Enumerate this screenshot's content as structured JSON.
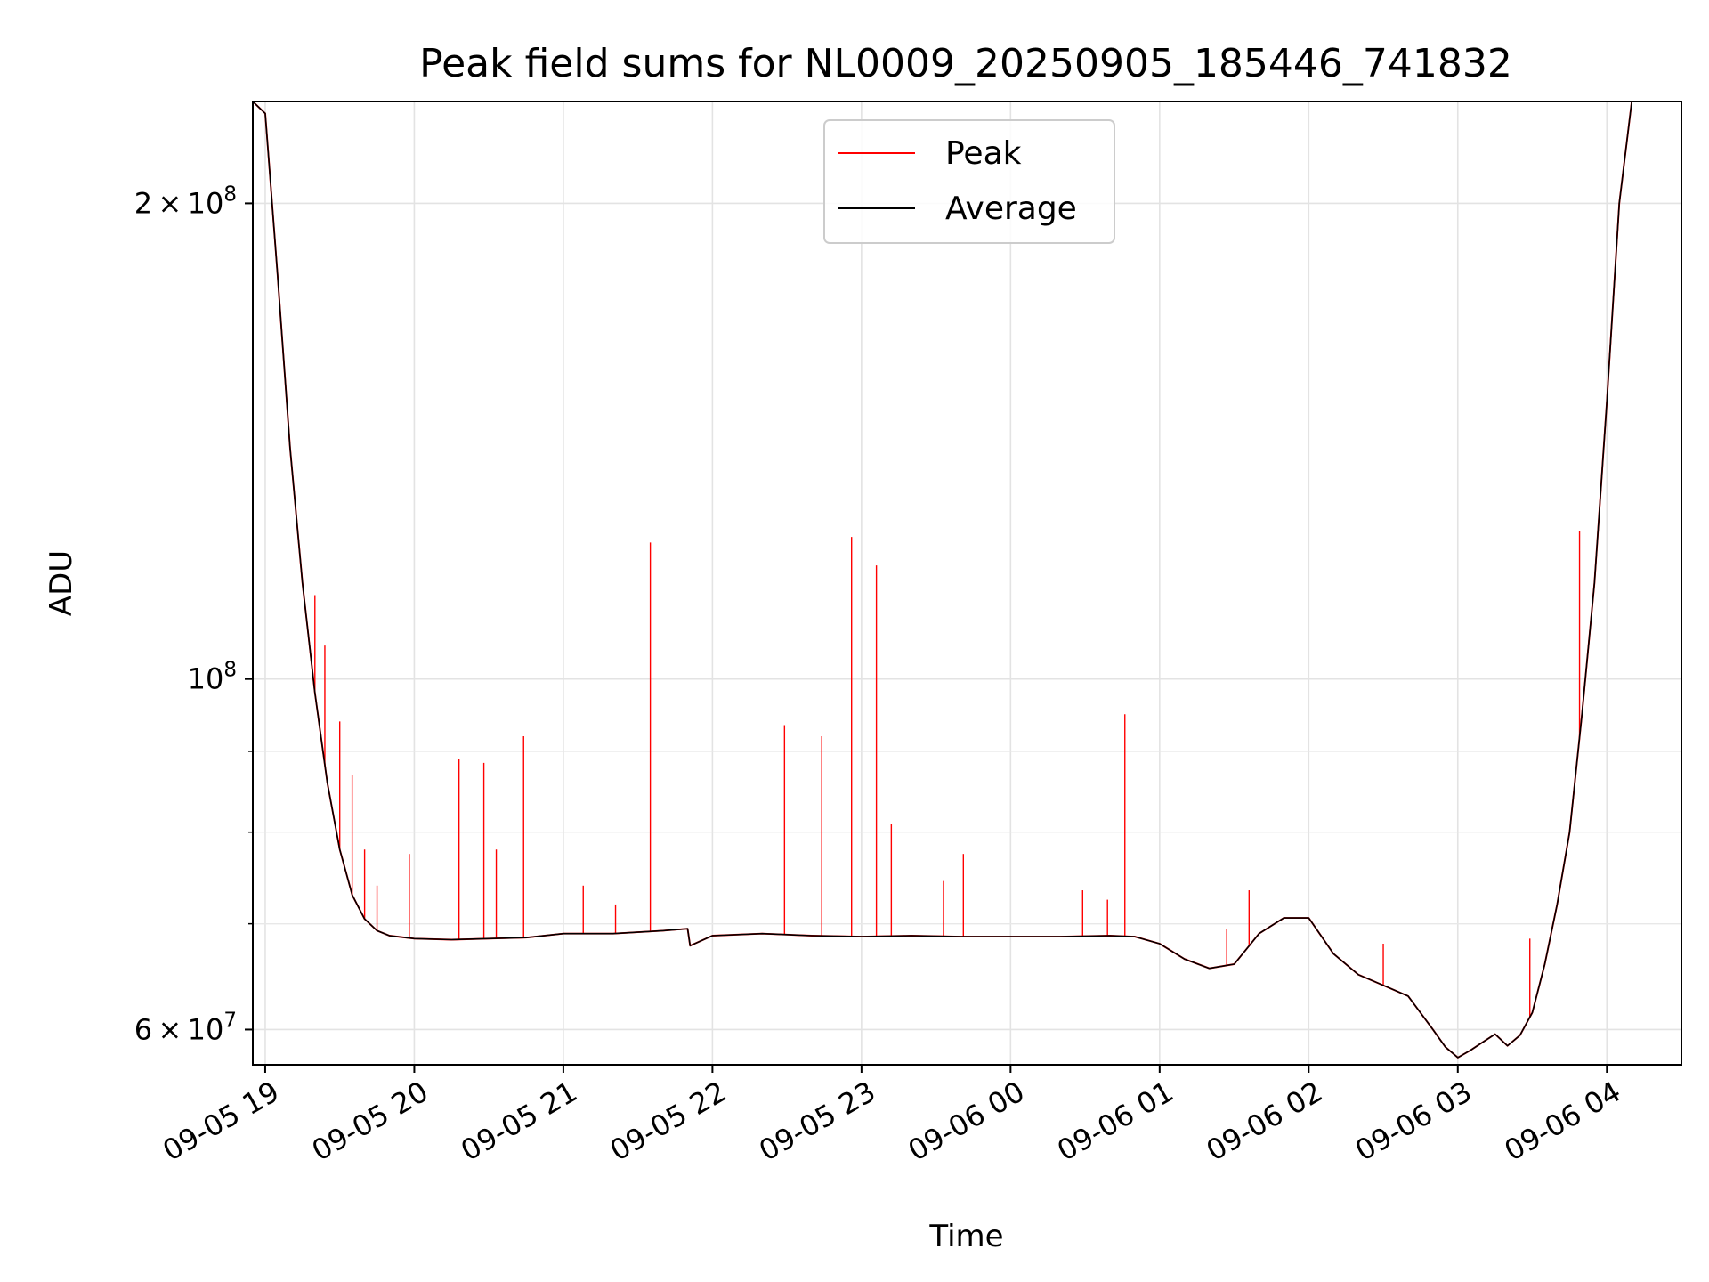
{
  "chart_data": {
    "type": "line",
    "title": "Peak field sums for NL0009_20250905_185446_741832",
    "xlabel": "Time",
    "ylabel": "ADU",
    "y_scale": "log",
    "ylim": [
      57000000,
      232000000
    ],
    "xlim": [
      "2025-09-05 18:55",
      "2025-09-06 04:30"
    ],
    "grid": true,
    "legend_position": "upper center",
    "x_ticks": [
      {
        "value": "2025-09-05 19:00",
        "label": "09-05 19"
      },
      {
        "value": "2025-09-05 20:00",
        "label": "09-05 20"
      },
      {
        "value": "2025-09-05 21:00",
        "label": "09-05 21"
      },
      {
        "value": "2025-09-05 22:00",
        "label": "09-05 22"
      },
      {
        "value": "2025-09-05 23:00",
        "label": "09-05 23"
      },
      {
        "value": "2025-09-06 00:00",
        "label": "09-06 00"
      },
      {
        "value": "2025-09-06 01:00",
        "label": "09-06 01"
      },
      {
        "value": "2025-09-06 02:00",
        "label": "09-06 02"
      },
      {
        "value": "2025-09-06 03:00",
        "label": "09-06 03"
      },
      {
        "value": "2025-09-06 04:00",
        "label": "09-06 04"
      }
    ],
    "y_ticks_major": [
      {
        "value": 60000000,
        "coef": "6",
        "exp": "7"
      },
      {
        "value": 100000000,
        "coef": "",
        "exp": "8"
      },
      {
        "value": 200000000,
        "coef": "2",
        "exp": "8"
      }
    ],
    "y_ticks_minor": [
      70000000,
      80000000,
      90000000
    ],
    "series": [
      {
        "name": "Peak",
        "color": "#ff0000",
        "line_width": 1.2,
        "x": [
          "2025-09-05 18:55",
          "2025-09-05 19:00",
          "2025-09-05 19:05",
          "2025-09-05 19:10",
          "2025-09-05 19:15",
          "2025-09-05 19:20",
          "2025-09-05 19:25",
          "2025-09-05 19:30",
          "2025-09-05 19:35",
          "2025-09-05 19:40",
          "2025-09-05 19:45",
          "2025-09-05 19:50",
          "2025-09-05 20:00",
          "2025-09-05 20:15",
          "2025-09-05 20:30",
          "2025-09-05 20:45",
          "2025-09-05 21:00",
          "2025-09-05 21:20",
          "2025-09-05 21:40",
          "2025-09-05 21:50",
          "2025-09-05 21:51",
          "2025-09-05 22:00",
          "2025-09-05 22:20",
          "2025-09-05 22:40",
          "2025-09-05 23:00",
          "2025-09-05 23:20",
          "2025-09-05 23:40",
          "2025-09-06 00:00",
          "2025-09-06 00:20",
          "2025-09-06 00:40",
          "2025-09-06 00:50",
          "2025-09-06 01:00",
          "2025-09-06 01:10",
          "2025-09-06 01:20",
          "2025-09-06 01:30",
          "2025-09-06 01:40",
          "2025-09-06 01:50",
          "2025-09-06 02:00",
          "2025-09-06 02:10",
          "2025-09-06 02:20",
          "2025-09-06 02:30",
          "2025-09-06 02:40",
          "2025-09-06 02:50",
          "2025-09-06 02:55",
          "2025-09-06 03:00",
          "2025-09-06 03:05",
          "2025-09-06 03:10",
          "2025-09-06 03:15",
          "2025-09-06 03:20",
          "2025-09-06 03:25",
          "2025-09-06 03:30",
          "2025-09-06 03:35",
          "2025-09-06 03:40",
          "2025-09-06 03:45",
          "2025-09-06 03:50",
          "2025-09-06 03:55",
          "2025-09-06 04:00",
          "2025-09-06 04:05",
          "2025-09-06 04:10",
          "2025-09-06 04:15"
        ],
        "values": [
          232000000,
          228000000,
          180000000,
          140000000,
          115000000,
          98000000,
          86000000,
          78000000,
          73000000,
          70500000,
          69300000,
          68800000,
          68500000,
          68400000,
          68500000,
          68600000,
          69000000,
          69000000,
          69300000,
          69500000,
          67800000,
          68800000,
          69000000,
          68800000,
          68700000,
          68800000,
          68700000,
          68700000,
          68700000,
          68800000,
          68700000,
          68000000,
          66500000,
          65600000,
          66000000,
          69000000,
          70600000,
          70600000,
          67000000,
          65000000,
          64000000,
          63000000,
          60000000,
          58500000,
          57600000,
          58200000,
          58900000,
          59600000,
          58600000,
          59500000,
          61500000,
          66000000,
          72000000,
          80000000,
          95000000,
          115000000,
          150000000,
          200000000,
          232000000,
          232000000
        ]
      },
      {
        "name": "Average",
        "color": "#000000",
        "line_width": 1.0,
        "x": [
          "2025-09-05 18:55",
          "2025-09-05 19:00",
          "2025-09-05 19:05",
          "2025-09-05 19:10",
          "2025-09-05 19:15",
          "2025-09-05 19:20",
          "2025-09-05 19:25",
          "2025-09-05 19:30",
          "2025-09-05 19:35",
          "2025-09-05 19:40",
          "2025-09-05 19:45",
          "2025-09-05 19:50",
          "2025-09-05 20:00",
          "2025-09-05 20:15",
          "2025-09-05 20:30",
          "2025-09-05 20:45",
          "2025-09-05 21:00",
          "2025-09-05 21:20",
          "2025-09-05 21:40",
          "2025-09-05 21:50",
          "2025-09-05 21:51",
          "2025-09-05 22:00",
          "2025-09-05 22:20",
          "2025-09-05 22:40",
          "2025-09-05 23:00",
          "2025-09-05 23:20",
          "2025-09-05 23:40",
          "2025-09-06 00:00",
          "2025-09-06 00:20",
          "2025-09-06 00:40",
          "2025-09-06 00:50",
          "2025-09-06 01:00",
          "2025-09-06 01:10",
          "2025-09-06 01:20",
          "2025-09-06 01:30",
          "2025-09-06 01:40",
          "2025-09-06 01:50",
          "2025-09-06 02:00",
          "2025-09-06 02:10",
          "2025-09-06 02:20",
          "2025-09-06 02:30",
          "2025-09-06 02:40",
          "2025-09-06 02:50",
          "2025-09-06 02:55",
          "2025-09-06 03:00",
          "2025-09-06 03:05",
          "2025-09-06 03:10",
          "2025-09-06 03:15",
          "2025-09-06 03:20",
          "2025-09-06 03:25",
          "2025-09-06 03:30",
          "2025-09-06 03:35",
          "2025-09-06 03:40",
          "2025-09-06 03:45",
          "2025-09-06 03:50",
          "2025-09-06 03:55",
          "2025-09-06 04:00",
          "2025-09-06 04:05",
          "2025-09-06 04:10",
          "2025-09-06 04:15"
        ],
        "values": [
          232000000,
          228000000,
          180000000,
          140000000,
          115000000,
          98000000,
          86000000,
          78000000,
          73000000,
          70500000,
          69300000,
          68800000,
          68500000,
          68400000,
          68500000,
          68600000,
          69000000,
          69000000,
          69300000,
          69500000,
          67800000,
          68800000,
          69000000,
          68800000,
          68700000,
          68800000,
          68700000,
          68700000,
          68700000,
          68800000,
          68700000,
          68000000,
          66500000,
          65600000,
          66000000,
          69000000,
          70600000,
          70600000,
          67000000,
          65000000,
          64000000,
          63000000,
          60000000,
          58500000,
          57600000,
          58200000,
          58900000,
          59600000,
          58600000,
          59500000,
          61500000,
          66000000,
          72000000,
          80000000,
          95000000,
          115000000,
          150000000,
          200000000,
          232000000,
          232000000
        ]
      }
    ],
    "peak_spikes": [
      {
        "x": "2025-09-05 19:20",
        "value": 113000000
      },
      {
        "x": "2025-09-05 19:24",
        "value": 105000000
      },
      {
        "x": "2025-09-05 19:30",
        "value": 94000000
      },
      {
        "x": "2025-09-05 19:35",
        "value": 87000000
      },
      {
        "x": "2025-09-05 19:40",
        "value": 78000000
      },
      {
        "x": "2025-09-05 19:45",
        "value": 74000000
      },
      {
        "x": "2025-09-05 19:58",
        "value": 77500000
      },
      {
        "x": "2025-09-05 20:18",
        "value": 89000000
      },
      {
        "x": "2025-09-05 20:28",
        "value": 88500000
      },
      {
        "x": "2025-09-05 20:33",
        "value": 78000000
      },
      {
        "x": "2025-09-05 20:44",
        "value": 92000000
      },
      {
        "x": "2025-09-05 21:08",
        "value": 74000000
      },
      {
        "x": "2025-09-05 21:21",
        "value": 72000000
      },
      {
        "x": "2025-09-05 21:35",
        "value": 122000000
      },
      {
        "x": "2025-09-05 22:29",
        "value": 93500000
      },
      {
        "x": "2025-09-05 22:44",
        "value": 92000000
      },
      {
        "x": "2025-09-05 22:56",
        "value": 123000000
      },
      {
        "x": "2025-09-05 23:06",
        "value": 118000000
      },
      {
        "x": "2025-09-05 23:12",
        "value": 81000000
      },
      {
        "x": "2025-09-05 23:33",
        "value": 74500000
      },
      {
        "x": "2025-09-05 23:41",
        "value": 77500000
      },
      {
        "x": "2025-09-06 00:29",
        "value": 73500000
      },
      {
        "x": "2025-09-06 00:39",
        "value": 72500000
      },
      {
        "x": "2025-09-06 00:46",
        "value": 95000000
      },
      {
        "x": "2025-09-06 01:27",
        "value": 69500000
      },
      {
        "x": "2025-09-06 01:36",
        "value": 73500000
      },
      {
        "x": "2025-09-06 02:30",
        "value": 68000000
      },
      {
        "x": "2025-09-06 03:29",
        "value": 68500000
      },
      {
        "x": "2025-09-06 03:49",
        "value": 124000000
      }
    ]
  }
}
